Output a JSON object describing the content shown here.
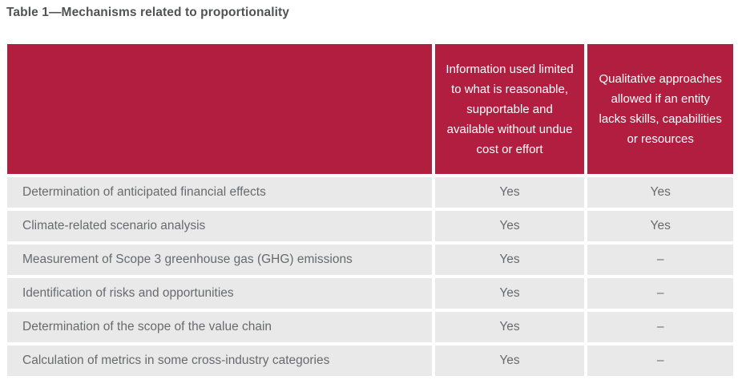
{
  "page": {
    "title": "Table 1—Mechanisms related to proportionality"
  },
  "table": {
    "header": {
      "mechanism_col": "",
      "col_limited": "Information used limited to what is reasonable, supportable and available without undue cost or effort",
      "col_qualitative": "Qualitative approaches allowed if an entity lacks skills, capabilities or resources"
    },
    "rows": [
      {
        "mechanism": "Determination of anticipated financial effects",
        "limited_info": "Yes",
        "qualitative": "Yes"
      },
      {
        "mechanism": "Climate-related scenario analysis",
        "limited_info": "Yes",
        "qualitative": "Yes"
      },
      {
        "mechanism": "Measurement of Scope 3 greenhouse gas (GHG) emissions",
        "limited_info": "Yes",
        "qualitative": "–"
      },
      {
        "mechanism": "Identification of risks and opportunities",
        "limited_info": "Yes",
        "qualitative": "–"
      },
      {
        "mechanism": "Determination of the scope of the value chain",
        "limited_info": "Yes",
        "qualitative": "–"
      },
      {
        "mechanism": "Calculation of metrics in some cross-industry categories",
        "limited_info": "Yes",
        "qualitative": "–"
      }
    ]
  },
  "colors": {
    "header_bg": "#B21E3F",
    "header_text": "#FFFFFF",
    "row_bg": "#E9E9E9",
    "body_text": "#696A6C",
    "title_text": "#515254",
    "page_bg": "#FFFFFF"
  }
}
